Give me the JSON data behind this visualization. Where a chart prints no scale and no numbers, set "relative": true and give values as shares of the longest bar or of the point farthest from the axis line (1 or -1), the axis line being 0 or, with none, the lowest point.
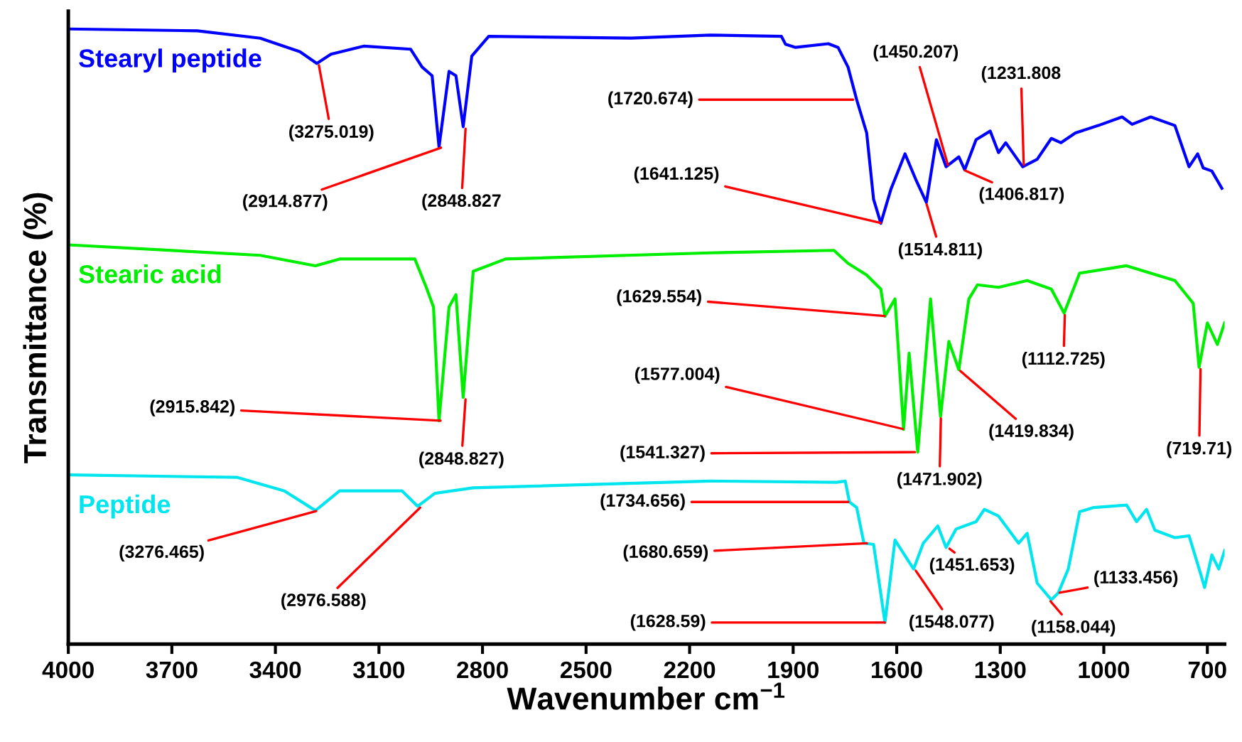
{
  "chart_data": {
    "type": "line",
    "relative": true,
    "xlabel": "Wavenumber cm$^{−1}$",
    "ylabel": "Transmittance (%)",
    "xlim": [
      4000,
      650
    ],
    "xticks": [
      4000,
      3700,
      3400,
      3100,
      2800,
      2500,
      2200,
      1900,
      1600,
      1300,
      1000,
      700
    ],
    "tick_labels": "x",
    "grid": false,
    "legend": false,
    "marker": "none",
    "line_style": "solid",
    "series": [
      {
        "name": "Stearyl peptide",
        "color": "#0000ff",
        "x": [
          4000,
          3626,
          3444,
          3329,
          3280,
          3239,
          3144,
          3008,
          2975,
          2946,
          2926,
          2897,
          2877,
          2856,
          2831,
          2782,
          2370,
          2140,
          1934,
          1922,
          1893,
          1798,
          1770,
          1741,
          1716,
          1687,
          1667,
          1646,
          1617,
          1576,
          1543,
          1514,
          1485,
          1457,
          1420,
          1403,
          1370,
          1329,
          1305,
          1284,
          1235,
          1193,
          1152,
          1124,
          1082,
          1016,
          947,
          918,
          864,
          794,
          753,
          728,
          712,
          687,
          658
        ],
        "values": [
          1.0,
          0.997,
          0.985,
          0.963,
          0.944,
          0.959,
          0.972,
          0.967,
          0.938,
          0.924,
          0.808,
          0.931,
          0.924,
          0.841,
          0.956,
          0.988,
          0.985,
          0.99,
          0.988,
          0.975,
          0.97,
          0.976,
          0.97,
          0.938,
          0.885,
          0.831,
          0.723,
          0.684,
          0.739,
          0.797,
          0.753,
          0.718,
          0.82,
          0.776,
          0.792,
          0.771,
          0.82,
          0.834,
          0.799,
          0.815,
          0.776,
          0.788,
          0.822,
          0.815,
          0.831,
          0.843,
          0.857,
          0.845,
          0.857,
          0.843,
          0.776,
          0.797,
          0.774,
          0.769,
          0.741
        ]
      },
      {
        "name": "Stearic acid",
        "color": "#00ee00",
        "x": [
          4000,
          3444,
          3284,
          3214,
          2996,
          2963,
          2942,
          2926,
          2897,
          2877,
          2856,
          2827,
          2733,
          2140,
          1782,
          1741,
          1687,
          1646,
          1634,
          1605,
          1580,
          1564,
          1539,
          1502,
          1473,
          1449,
          1420,
          1391,
          1366,
          1305,
          1222,
          1152,
          1115,
          1070,
          934,
          794,
          741,
          724,
          700,
          671,
          650
        ],
        "values": [
          0.649,
          0.632,
          0.615,
          0.626,
          0.626,
          0.58,
          0.548,
          0.363,
          0.548,
          0.568,
          0.401,
          0.606,
          0.626,
          0.636,
          0.64,
          0.619,
          0.6,
          0.577,
          0.533,
          0.561,
          0.349,
          0.473,
          0.312,
          0.561,
          0.37,
          0.492,
          0.446,
          0.561,
          0.584,
          0.58,
          0.591,
          0.577,
          0.538,
          0.603,
          0.615,
          0.591,
          0.554,
          0.45,
          0.522,
          0.487,
          0.522
        ]
      },
      {
        "name": "Peptide",
        "color": "#00e5ee",
        "x": [
          4000,
          3510,
          3374,
          3284,
          3214,
          3033,
          2988,
          2938,
          2827,
          2140,
          1774,
          1749,
          1737,
          1716,
          1695,
          1667,
          1634,
          1605,
          1551,
          1523,
          1481,
          1457,
          1428,
          1370,
          1346,
          1305,
          1247,
          1222,
          1193,
          1152,
          1132,
          1103,
          1070,
          1029,
          934,
          905,
          876,
          852,
          794,
          753,
          720,
          708,
          687,
          667,
          650
        ],
        "values": [
          0.275,
          0.271,
          0.249,
          0.217,
          0.249,
          0.249,
          0.224,
          0.245,
          0.254,
          0.265,
          0.263,
          0.265,
          0.231,
          0.222,
          0.164,
          0.162,
          0.035,
          0.169,
          0.122,
          0.164,
          0.192,
          0.157,
          0.187,
          0.199,
          0.219,
          0.208,
          0.164,
          0.18,
          0.099,
          0.072,
          0.083,
          0.122,
          0.215,
          0.222,
          0.226,
          0.199,
          0.219,
          0.185,
          0.173,
          0.176,
          0.115,
          0.092,
          0.145,
          0.122,
          0.152
        ]
      }
    ],
    "annotations": [
      {
        "text": "(3275.019)",
        "x": 3275.019,
        "y": 0.944
      },
      {
        "text": "(2914.877)",
        "x": 2914.877,
        "y": 0.808
      },
      {
        "text": "(2848.827",
        "x": 2848.827,
        "y": 0.841
      },
      {
        "text": "(1720.674)",
        "x": 1720.674,
        "y": 0.885
      },
      {
        "text": "(1641.125)",
        "x": 1641.125,
        "y": 0.684
      },
      {
        "text": "(1514.811)",
        "x": 1514.811,
        "y": 0.718
      },
      {
        "text": "(1450.207)",
        "x": 1450.207,
        "y": 0.776
      },
      {
        "text": "(1406.817)",
        "x": 1406.817,
        "y": 0.771
      },
      {
        "text": "(1231.808",
        "x": 1231.808,
        "y": 0.776
      },
      {
        "text": "(2915.842)",
        "x": 2915.842,
        "y": 0.363
      },
      {
        "text": "(2848.827)",
        "x": 2848.827,
        "y": 0.401
      },
      {
        "text": "(1629.554)",
        "x": 1629.554,
        "y": 0.533
      },
      {
        "text": "(1577.004)",
        "x": 1577.004,
        "y": 0.349
      },
      {
        "text": "(1541.327)",
        "x": 1541.327,
        "y": 0.312
      },
      {
        "text": "(1471.902)",
        "x": 1471.902,
        "y": 0.37
      },
      {
        "text": "(1419.834)",
        "x": 1419.834,
        "y": 0.446
      },
      {
        "text": "(1112.725)",
        "x": 1112.725,
        "y": 0.538
      },
      {
        "text": "(719.71)",
        "x": 719.71,
        "y": 0.45
      },
      {
        "text": "(3276.465)",
        "x": 3276.465,
        "y": 0.217
      },
      {
        "text": "(2976.588)",
        "x": 2976.588,
        "y": 0.224
      },
      {
        "text": "(1734.656)",
        "x": 1734.656,
        "y": 0.231
      },
      {
        "text": "(1680.659)",
        "x": 1680.659,
        "y": 0.164
      },
      {
        "text": "(1451.653)",
        "x": 1451.653,
        "y": 0.157
      },
      {
        "text": "(1548.077)",
        "x": 1548.077,
        "y": 0.122
      },
      {
        "text": "(1628.59)",
        "x": 1628.59,
        "y": 0.035
      },
      {
        "text": "(1158.044)",
        "x": 1158.044,
        "y": 0.072
      },
      {
        "text": "(1133.456)",
        "x": 1133.456,
        "y": 0.083
      }
    ]
  }
}
